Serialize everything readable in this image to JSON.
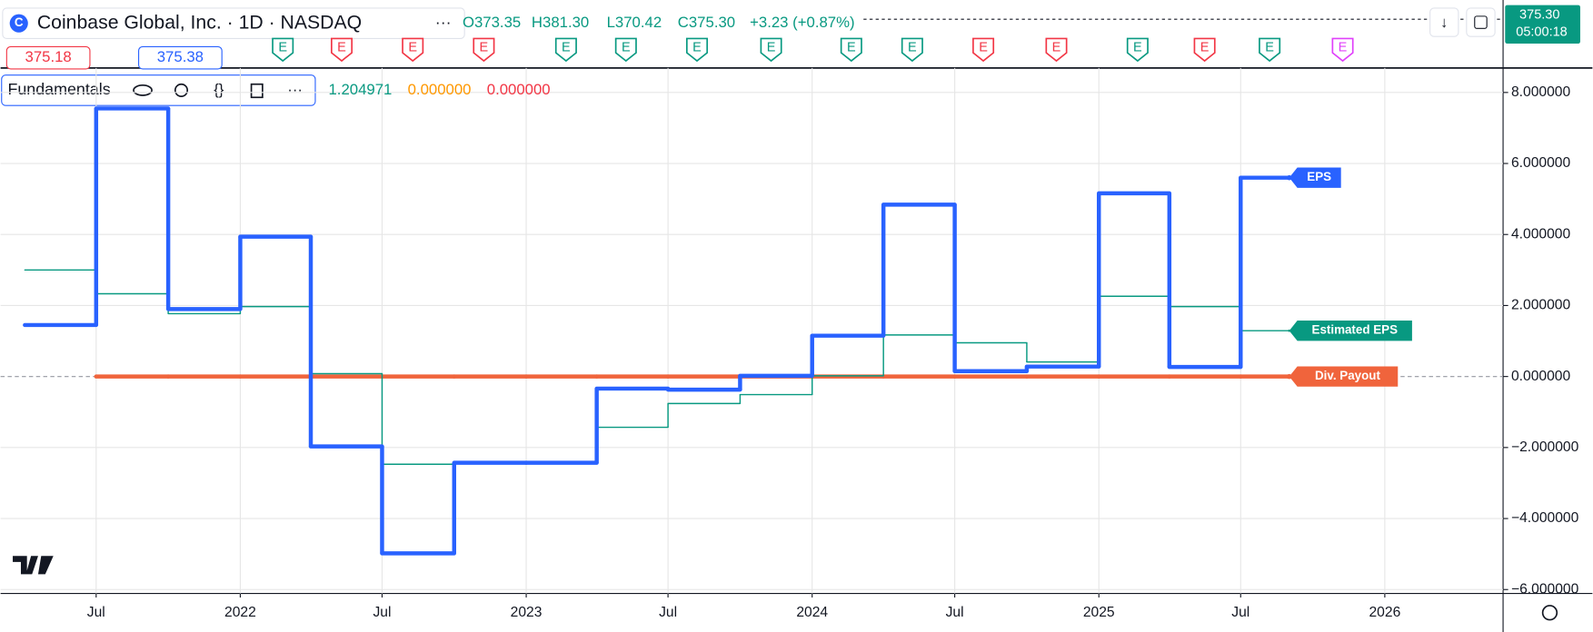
{
  "header": {
    "symbol": "Coinbase Global, Inc. · 1D · NASDAQ",
    "open": "O373.35",
    "high": "H381.30",
    "low": "L370.42",
    "close": "C375.30",
    "change": "+3.23 (+0.87%)",
    "bid": "375.18",
    "ask": "375.38",
    "last_price": "375.30",
    "countdown": "05:00:18"
  },
  "earnings_markers": [
    {
      "label": "E",
      "color": "#089981"
    },
    {
      "label": "E",
      "color": "#f23645"
    },
    {
      "label": "E",
      "color": "#f23645"
    },
    {
      "label": "E",
      "color": "#f23645"
    },
    {
      "label": "E",
      "color": "#089981"
    },
    {
      "label": "E",
      "color": "#089981"
    },
    {
      "label": "E",
      "color": "#089981"
    },
    {
      "label": "E",
      "color": "#089981"
    },
    {
      "label": "E",
      "color": "#089981"
    },
    {
      "label": "E",
      "color": "#089981"
    },
    {
      "label": "E",
      "color": "#f23645"
    },
    {
      "label": "E",
      "color": "#f23645"
    },
    {
      "label": "E",
      "color": "#089981"
    },
    {
      "label": "E",
      "color": "#f23645"
    },
    {
      "label": "E",
      "color": "#089981"
    },
    {
      "label": "E",
      "color": "#e040fb"
    }
  ],
  "indicator": {
    "name": "Fundamentals",
    "values": [
      "1.204971",
      "0.000000",
      "0.000000"
    ],
    "value_colors": [
      "#089981",
      "#ff9800",
      "#f23645"
    ]
  },
  "chart_data": {
    "type": "step",
    "x": [
      "2021-04",
      "2021-07",
      "2021-10",
      "2022-01",
      "2022-04",
      "2022-07",
      "2022-10",
      "2023-01",
      "2023-04",
      "2023-07",
      "2023-10",
      "2024-01",
      "2024-04",
      "2024-07",
      "2024-10",
      "2025-01",
      "2025-04",
      "2025-07",
      "2025-09"
    ],
    "series": [
      {
        "name": "EPS",
        "color": "#2962ff",
        "values": [
          1.45,
          7.55,
          1.9,
          3.94,
          -1.97,
          -4.98,
          -2.43,
          -2.43,
          -0.34,
          -0.37,
          0.02,
          1.15,
          4.84,
          0.15,
          0.28,
          5.16,
          0.27,
          5.6,
          5.6
        ]
      },
      {
        "name": "Estimated EPS",
        "color": "#089981",
        "values": [
          3.0,
          2.33,
          1.77,
          1.97,
          0.08,
          -2.47,
          -2.43,
          -2.43,
          -1.43,
          -0.76,
          -0.51,
          0.02,
          1.17,
          0.95,
          0.41,
          2.26,
          1.97,
          1.29,
          1.29
        ]
      },
      {
        "name": "Div. Payout",
        "color": "#f0643c",
        "values": [
          null,
          0,
          0,
          0,
          0,
          0,
          0,
          0,
          0,
          0,
          0,
          0,
          0,
          0,
          0,
          0,
          0,
          0,
          0
        ]
      }
    ],
    "xlim": [
      "2021-03",
      "2026-06"
    ],
    "xticks": [
      {
        "value": "2021-07",
        "label": "Jul"
      },
      {
        "value": "2022-01",
        "label": "2022"
      },
      {
        "value": "2022-07",
        "label": "Jul"
      },
      {
        "value": "2023-01",
        "label": "2023"
      },
      {
        "value": "2023-07",
        "label": "Jul"
      },
      {
        "value": "2024-01",
        "label": "2024"
      },
      {
        "value": "2024-07",
        "label": "Jul"
      },
      {
        "value": "2025-01",
        "label": "2025"
      },
      {
        "value": "2025-07",
        "label": "Jul"
      },
      {
        "value": "2026-01",
        "label": "2026"
      }
    ],
    "ylim": [
      -6.11,
      8.69
    ],
    "yticks": [
      {
        "value": 8,
        "label": "8.000000"
      },
      {
        "value": 6,
        "label": "6.000000"
      },
      {
        "value": 4,
        "label": "4.000000"
      },
      {
        "value": 2,
        "label": "2.000000"
      },
      {
        "value": 0,
        "label": "0.000000"
      },
      {
        "value": -2,
        "label": "−2.000000"
      },
      {
        "value": -4,
        "label": "−4.000000"
      },
      {
        "value": -6,
        "label": "−6.000000"
      }
    ],
    "grid": true
  }
}
